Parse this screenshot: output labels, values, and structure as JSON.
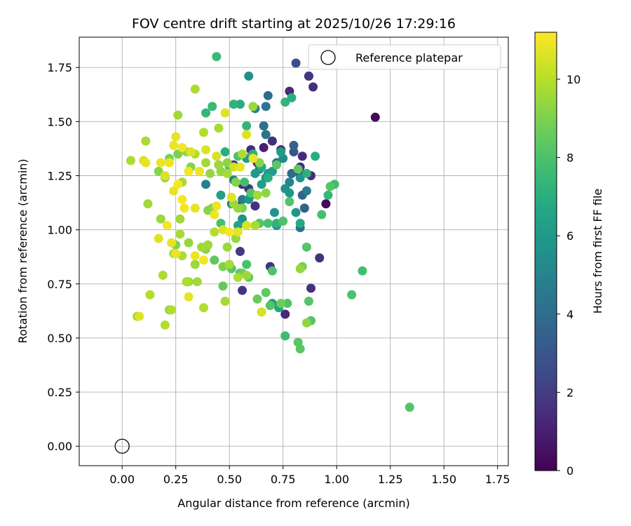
{
  "chart_data": {
    "type": "scatter",
    "title": "FOV centre drift starting at 2025/10/26 17:29:16",
    "xlabel": "Angular distance from reference (arcmin)",
    "ylabel": "Rotation from reference (arcmin)",
    "xlim": [
      -0.2,
      1.8
    ],
    "ylim": [
      -0.09,
      1.89
    ],
    "xticks": [
      "0.00",
      "0.25",
      "0.50",
      "0.75",
      "1.00",
      "1.25",
      "1.50",
      "1.75"
    ],
    "yticks": [
      "0.00",
      "0.25",
      "0.50",
      "0.75",
      "1.00",
      "1.25",
      "1.50",
      "1.75"
    ],
    "grid": true,
    "legend": {
      "location": "upper right",
      "entries": [
        "Reference platepar"
      ]
    },
    "colorbar": {
      "label": "Hours from first FF file",
      "ticks": [
        "0",
        "2",
        "4",
        "6",
        "8",
        "10"
      ],
      "min": 0,
      "max": 11.2,
      "colormap": "viridis"
    },
    "reference_point": {
      "x": 0.0,
      "y": 0.0
    },
    "series": [
      {
        "x": [
          1.18,
          0.95,
          0.81,
          0.87,
          0.89,
          0.78,
          0.84,
          0.74,
          0.7,
          0.83,
          0.83,
          0.88,
          0.66,
          0.6,
          0.63,
          0.59,
          0.56,
          0.52,
          0.55,
          0.62,
          0.69,
          0.76,
          0.87,
          0.88,
          0.92,
          0.56,
          0.55
        ],
        "y": [
          1.52,
          1.12,
          1.77,
          1.71,
          1.66,
          1.64,
          1.34,
          1.37,
          1.41,
          1.29,
          1.26,
          1.25,
          1.38,
          1.37,
          1.31,
          1.19,
          1.21,
          1.3,
          1.11,
          1.11,
          0.83,
          0.61,
          1.71,
          0.73,
          0.87,
          0.72,
          0.9
        ],
        "hours": [
          0.2,
          0.3,
          2.6,
          1.2,
          1.5,
          1.3,
          1.4,
          1.3,
          1.5,
          1.4,
          1.2,
          1.5,
          1.0,
          1.4,
          1.6,
          1.7,
          1.3,
          1.4,
          1.0,
          1.5,
          1.6,
          1.3,
          1.7,
          1.5,
          1.6,
          1.8,
          1.9
        ]
      },
      {
        "x": [
          0.59,
          0.62,
          0.67,
          0.68,
          0.72,
          0.8,
          0.8,
          0.83,
          0.85,
          0.79,
          0.84,
          0.66,
          0.67,
          0.64,
          0.67,
          0.51,
          0.56,
          0.75,
          0.78,
          0.76,
          0.72,
          0.71,
          0.83,
          0.86,
          0.39,
          0.45,
          0.52,
          0.56,
          0.6,
          0.64,
          0.68,
          0.7,
          0.74,
          0.78,
          0.81,
          0.58,
          0.46,
          0.54,
          0.59,
          0.62,
          0.65,
          0.7,
          0.73
        ],
        "y": [
          1.71,
          1.56,
          1.57,
          1.62,
          1.31,
          1.39,
          1.36,
          1.01,
          1.1,
          1.26,
          1.16,
          1.48,
          1.44,
          1.28,
          1.24,
          1.12,
          1.14,
          1.33,
          1.22,
          1.19,
          1.02,
          1.08,
          1.24,
          1.18,
          1.21,
          1.3,
          1.23,
          1.05,
          1.16,
          1.03,
          1.26,
          1.27,
          1.36,
          1.17,
          1.08,
          1.33,
          1.16,
          1.02,
          1.14,
          1.26,
          1.21,
          0.66,
          0.64
        ],
        "hours": [
          5.5,
          4.8,
          4.5,
          4.0,
          4.0,
          3.5,
          3.0,
          4.0,
          3.5,
          3.8,
          3.6,
          4.1,
          4.3,
          5.0,
          5.2,
          4.8,
          4.6,
          5.3,
          5.0,
          5.5,
          5.6,
          5.8,
          5.7,
          4.6,
          4.8,
          5.2,
          4.9,
          5.6,
          5.4,
          6.0,
          5.9,
          6.1,
          6.2,
          5.9,
          5.8,
          6.1,
          6.4,
          6.5,
          5.9,
          6.0,
          6.3,
          6.4,
          6.7
        ]
      },
      {
        "x": [
          0.44,
          0.48,
          0.52,
          0.55,
          0.58,
          0.61,
          0.65,
          0.68,
          0.72,
          0.76,
          0.79,
          0.83,
          0.86,
          0.9,
          0.96,
          0.99,
          0.42,
          0.39,
          0.46,
          0.5,
          0.54,
          0.57,
          0.6,
          0.64,
          0.68,
          0.72,
          0.75,
          0.78,
          0.82,
          0.86,
          1.07,
          1.12,
          1.34,
          0.76,
          0.82,
          0.7,
          0.58,
          0.55,
          0.4,
          0.43,
          0.47,
          0.51,
          0.56,
          0.59,
          0.63,
          0.67,
          0.69,
          0.74,
          0.77,
          0.83,
          0.88,
          0.93,
          0.97,
          0.84,
          0.87
        ],
        "y": [
          1.8,
          1.36,
          1.58,
          1.58,
          1.48,
          1.35,
          1.29,
          1.24,
          1.03,
          1.59,
          1.61,
          1.03,
          1.26,
          1.34,
          1.16,
          1.21,
          1.57,
          1.54,
          1.03,
          1.29,
          1.34,
          1.22,
          1.17,
          1.03,
          1.03,
          1.3,
          1.04,
          1.13,
          1.28,
          0.92,
          0.7,
          0.81,
          0.18,
          0.51,
          0.48,
          0.81,
          0.84,
          0.8,
          0.93,
          0.86,
          0.74,
          0.82,
          0.8,
          0.78,
          0.68,
          0.71,
          0.65,
          0.66,
          0.66,
          0.45,
          0.58,
          1.07,
          1.2,
          0.83,
          0.67
        ],
        "hours": [
          7.5,
          7.0,
          7.2,
          6.9,
          7.3,
          7.1,
          6.8,
          7.0,
          7.2,
          7.3,
          7.0,
          6.8,
          7.1,
          7.0,
          7.4,
          7.6,
          7.5,
          7.3,
          7.9,
          7.6,
          8.0,
          7.8,
          8.1,
          8.2,
          7.9,
          8.3,
          8.0,
          8.1,
          8.4,
          8.2,
          8.0,
          7.8,
          8.1,
          7.6,
          8.3,
          8.0,
          7.9,
          7.7,
          8.6,
          8.4,
          8.5,
          8.3,
          8.7,
          8.5,
          8.6,
          8.4,
          8.2,
          8.7,
          8.0,
          8.3,
          8.1,
          7.9,
          8.2,
          8.8,
          8.2
        ]
      },
      {
        "x": [
          0.61,
          0.64,
          0.56,
          0.53,
          0.49,
          0.46,
          0.42,
          0.4,
          0.36,
          0.32,
          0.3,
          0.26,
          0.22,
          0.2,
          0.18,
          0.17,
          0.12,
          0.11,
          0.22,
          0.25,
          0.28,
          0.31,
          0.34,
          0.37,
          0.39,
          0.43,
          0.47,
          0.5,
          0.54,
          0.58,
          0.35,
          0.38,
          0.3,
          0.27,
          0.34,
          0.26,
          0.54,
          0.63,
          0.67,
          0.62,
          0.45,
          0.49,
          0.39,
          0.41,
          0.45,
          0.52,
          0.56,
          0.27,
          0.23,
          0.24,
          0.2,
          0.19,
          0.13,
          0.07,
          0.04,
          0.38,
          0.34,
          0.28,
          0.31,
          0.83,
          0.86,
          0.4,
          0.49,
          0.53,
          0.48
        ],
        "y": [
          1.57,
          1.31,
          1.1,
          1.22,
          1.31,
          1.27,
          1.1,
          1.09,
          1.27,
          1.29,
          1.36,
          1.53,
          1.33,
          1.24,
          1.05,
          1.27,
          1.12,
          1.41,
          0.63,
          0.93,
          0.88,
          0.94,
          0.84,
          0.92,
          0.91,
          0.99,
          0.83,
          0.84,
          0.78,
          0.79,
          0.76,
          0.64,
          0.76,
          0.98,
          1.35,
          1.35,
          1.1,
          1.16,
          1.17,
          1.02,
          1.3,
          1.26,
          1.31,
          1.26,
          1.47,
          1.12,
          1.35,
          1.05,
          0.63,
          0.89,
          0.56,
          0.79,
          0.7,
          0.6,
          1.32,
          1.45,
          1.65,
          1.22,
          0.76,
          0.82,
          0.57,
          0.93,
          0.92,
          0.96,
          0.67
        ],
        "hours": [
          9.5,
          9.2,
          9.0,
          9.1,
          9.3,
          9.4,
          9.0,
          9.2,
          9.5,
          9.1,
          9.3,
          9.6,
          9.0,
          9.4,
          9.5,
          9.2,
          9.6,
          9.7,
          9.3,
          9.1,
          9.8,
          9.4,
          9.5,
          9.6,
          9.2,
          9.9,
          9.0,
          9.7,
          9.8,
          9.5,
          9.6,
          9.9,
          9.8,
          9.7,
          9.9,
          9.0,
          9.4,
          9.6,
          9.3,
          9.8,
          9.5,
          9.7,
          9.6,
          9.4,
          9.7,
          9.5,
          9.8,
          9.6,
          9.9,
          9.7,
          9.9,
          9.8,
          9.9,
          9.6,
          9.8,
          9.9,
          9.8,
          9.7,
          9.5,
          9.4,
          9.3,
          9.6,
          9.5,
          9.4,
          9.7
        ]
      },
      {
        "x": [
          0.39,
          0.44,
          0.48,
          0.52,
          0.55,
          0.58,
          0.36,
          0.32,
          0.28,
          0.25,
          0.22,
          0.2,
          0.26,
          0.24,
          0.21,
          0.17,
          0.18,
          0.11,
          0.1,
          0.08,
          0.31,
          0.34,
          0.38,
          0.43,
          0.47,
          0.5,
          0.54,
          0.58,
          0.61,
          0.65,
          0.44,
          0.51,
          0.25,
          0.29,
          0.34,
          0.28,
          0.23,
          0.24,
          0.31
        ],
        "y": [
          1.37,
          1.34,
          1.54,
          1.29,
          1.29,
          1.44,
          1.27,
          1.36,
          1.38,
          1.43,
          1.31,
          1.25,
          1.21,
          1.18,
          1.02,
          0.96,
          1.31,
          1.31,
          1.32,
          0.6,
          0.69,
          0.88,
          0.86,
          1.07,
          1.0,
          0.99,
          0.99,
          1.02,
          1.33,
          0.62,
          1.11,
          1.15,
          0.89,
          1.1,
          1.1,
          1.14,
          0.94,
          1.39,
          1.27
        ],
        "hours": [
          10.6,
          10.5,
          10.7,
          10.4,
          10.8,
          10.6,
          10.9,
          10.7,
          11.0,
          10.8,
          10.9,
          10.6,
          11.1,
          10.8,
          11.0,
          10.7,
          10.9,
          10.8,
          10.6,
          10.7,
          10.8,
          10.9,
          11.0,
          10.9,
          10.7,
          11.1,
          10.8,
          10.6,
          10.9,
          10.5,
          10.9,
          10.7,
          10.9,
          11.0,
          10.8,
          11.1,
          10.8,
          10.9,
          11.0
        ]
      }
    ]
  }
}
